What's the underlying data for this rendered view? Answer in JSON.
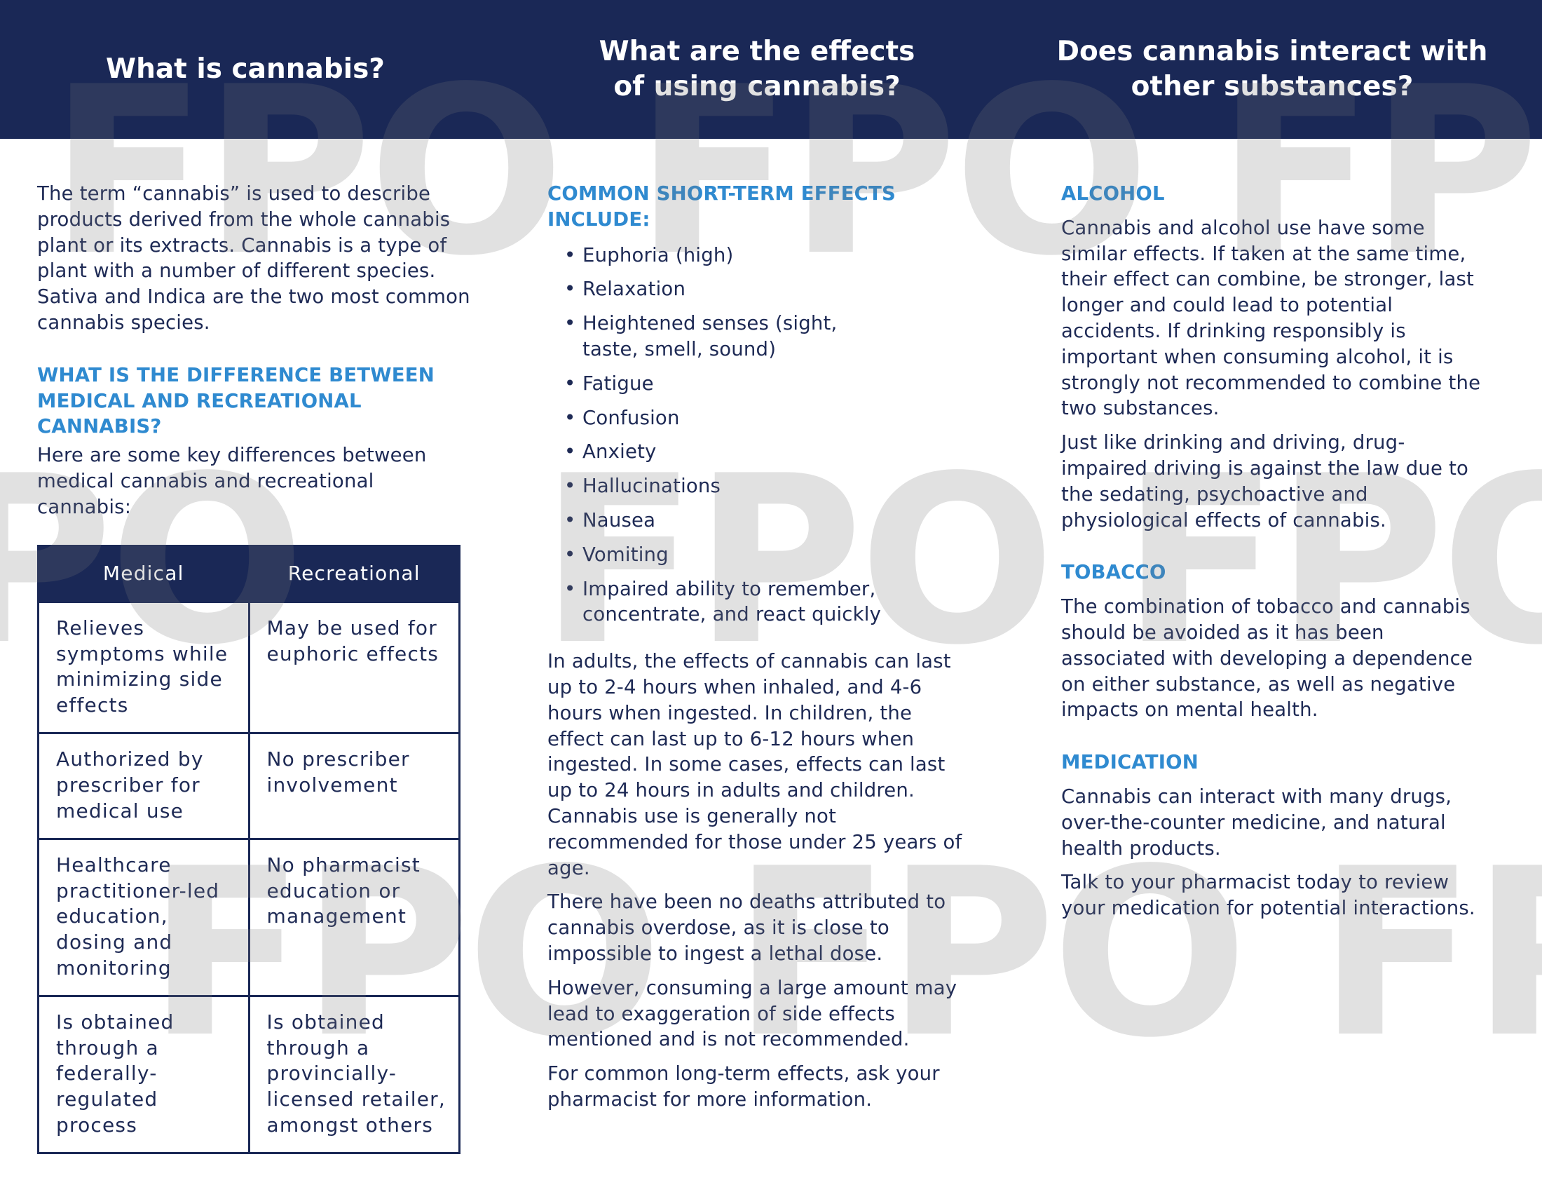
{
  "header": {
    "col1_title": "What is cannabis?",
    "col2_title": [
      "What are the effects",
      "of using cannabis?"
    ],
    "col3_title": [
      "Does cannabis interact with",
      "other substances?"
    ]
  },
  "watermark": "FPO",
  "col1": {
    "intro": "The term “cannabis” is used to describe products derived from the whole cannabis plant or its extracts. Cannabis is a type of plant with a number of different species. Sativa and Indica are the two most common cannabis species.",
    "heading": "What is the difference between medical and recreational cannabis?",
    "lead": "Here are some key differences between medical cannabis and recreational cannabis:",
    "table": {
      "headers": [
        "Medical",
        "Recreational"
      ],
      "rows": [
        [
          "Relieves symptoms while minimizing side effects",
          "May be used for euphoric effects"
        ],
        [
          "Authorized by prescriber for medical use",
          "No prescriber involvement"
        ],
        [
          "Healthcare practitioner-led education, dosing and monitoring",
          "No pharmacist education or management"
        ],
        [
          "Is obtained through a federally-regulated process",
          "Is obtained through a provincially-licensed retailer, amongst others"
        ]
      ]
    }
  },
  "col2": {
    "heading": "Common short-term effects include:",
    "effects": [
      "Euphoria (high)",
      "Relaxation",
      "Heightened senses (sight, taste, smell, sound)",
      "Fatigue",
      "Confusion",
      "Anxiety",
      "Hallucinations",
      "Nausea",
      "Vomiting",
      "Impaired ability to remember, concentrate, and react quickly"
    ],
    "paragraphs": [
      "In adults, the effects of cannabis can last up to 2-4 hours when inhaled, and 4-6 hours when ingested. In children, the effect can last up to 6-12 hours when ingested. In some cases, effects can last up to 24 hours in adults and children. Cannabis use is generally not recommended for those under 25 years of age.",
      "There have been no deaths attributed to cannabis overdose, as it is close to impossible to ingest a lethal dose.",
      "However, consuming a large amount may lead to exaggeration of side effects mentioned and is not recommended.",
      "For common long-term effects, ask your pharmacist for more information."
    ]
  },
  "col3": {
    "alcohol_heading": "Alcohol",
    "alcohol_paragraphs": [
      "Cannabis and alcohol use have some similar effects. If taken at the same time, their effect can combine, be stronger, last longer and could lead to potential accidents. If drinking responsibly is important when consuming alcohol, it is strongly not recommended to combine the two substances.",
      "Just like drinking and driving, drug-impaired driving is against the law due to the sedating, psychoactive and physiological effects of cannabis."
    ],
    "tobacco_heading": "Tobacco",
    "tobacco_paragraph": "The combination of tobacco and cannabis should be avoided as it has been associated with developing a dependence on either substance, as well as negative impacts on mental health.",
    "medication_heading": "Medication",
    "medication_paragraphs": [
      "Cannabis can interact with many drugs, over-the-counter medicine, and natural health products.",
      "Talk to your pharmacist today to review your medication for potential interactions."
    ]
  },
  "colors": {
    "navy": "#1a2856",
    "accent_blue": "#2f8ad0",
    "watermark_gray": "#e0e0e0"
  }
}
